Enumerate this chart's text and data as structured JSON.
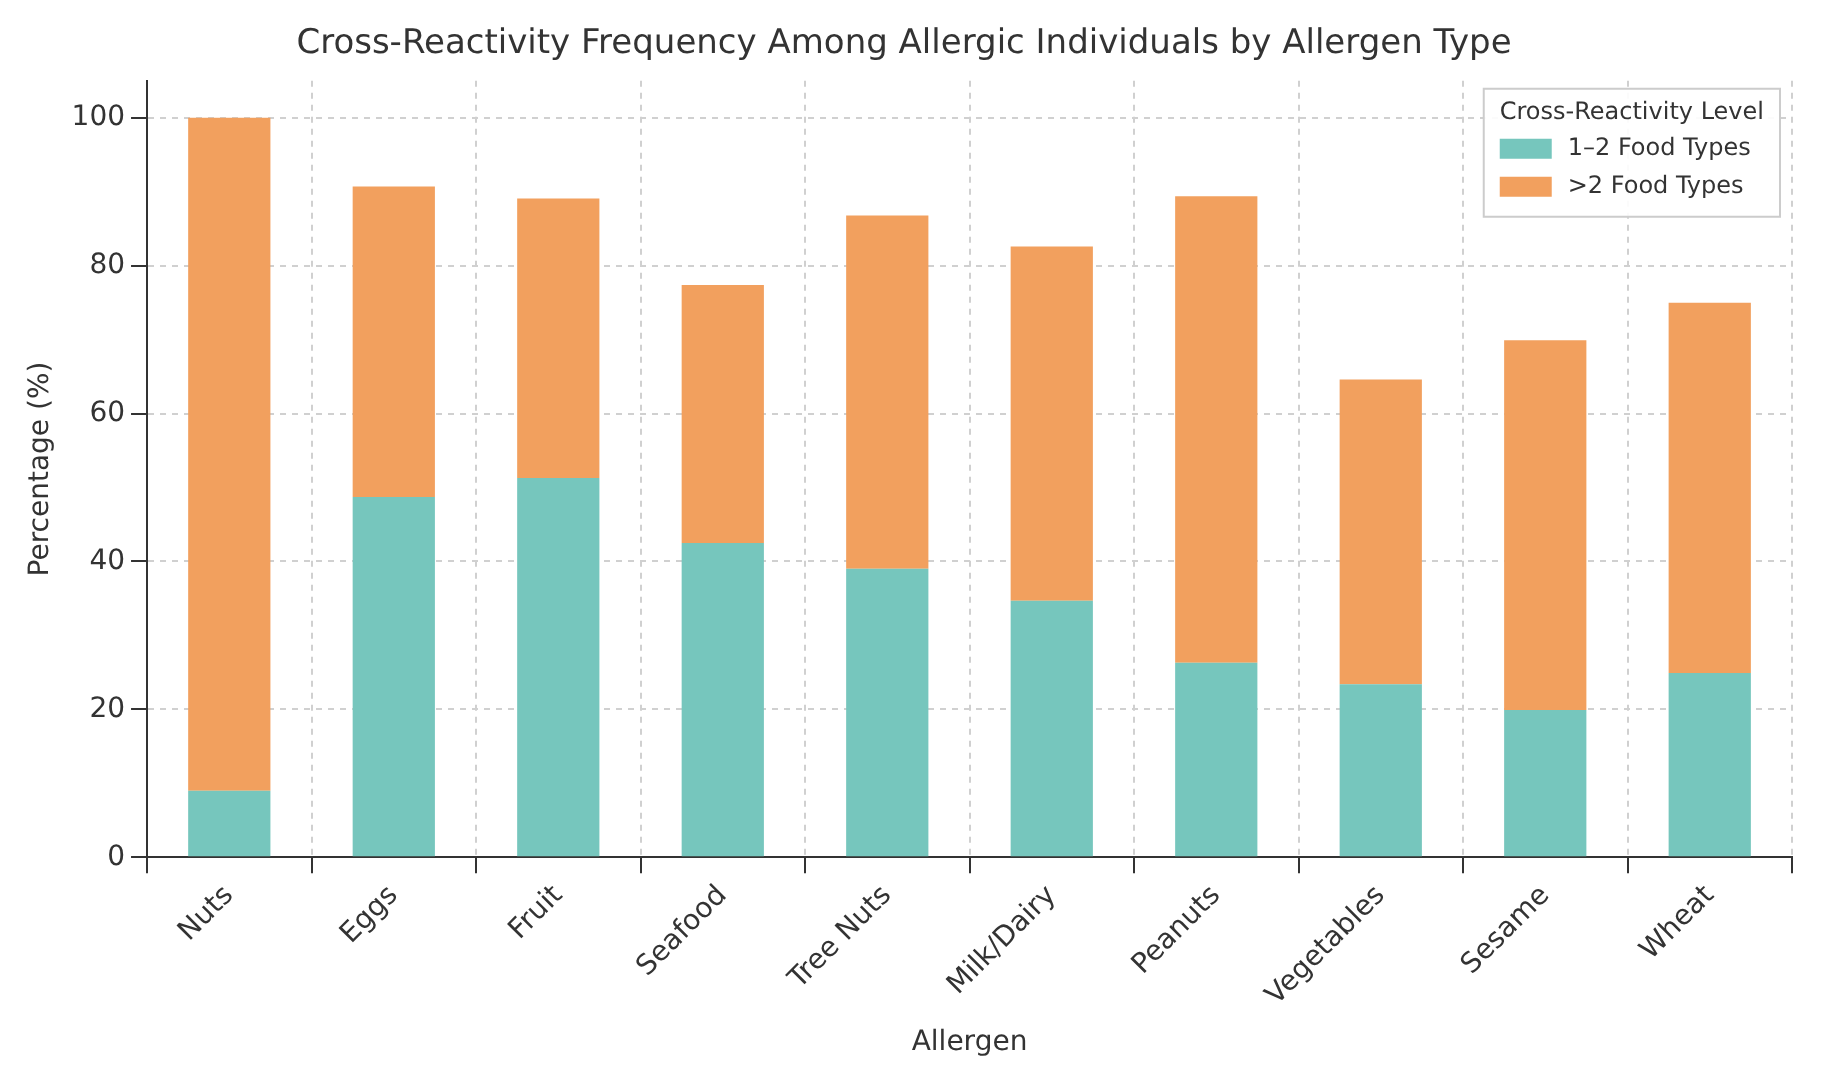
{
  "chart_data": {
    "type": "bar",
    "title": "Cross-Reactivity Frequency Among Allergic Individuals by Allergen Type",
    "xlabel": "Allergen",
    "ylabel": "Percentage (%)",
    "legend_title": "Cross-Reactivity Level",
    "categories": [
      "Nuts",
      "Eggs",
      "Fruit",
      "Seafood",
      "Tree Nuts",
      "Milk/Dairy",
      "Peanuts",
      "Vegetables",
      "Sesame",
      "Wheat"
    ],
    "series": [
      {
        "name": "1–2 Food Types",
        "color": "#76c6bd",
        "values": [
          9.0,
          48.7,
          51.3,
          42.5,
          39.0,
          34.7,
          26.3,
          23.4,
          19.9,
          24.9
        ]
      },
      {
        "name": ">2 Food Types",
        "color": "#f2a05e",
        "values": [
          91.0,
          42.0,
          37.8,
          34.9,
          47.8,
          47.9,
          63.1,
          41.2,
          50.0,
          50.1
        ]
      }
    ],
    "stacked": true,
    "ylim": [
      0,
      105
    ],
    "yticks": [
      0,
      20,
      40,
      60,
      80,
      100
    ],
    "grid": true,
    "legend": "top right"
  }
}
